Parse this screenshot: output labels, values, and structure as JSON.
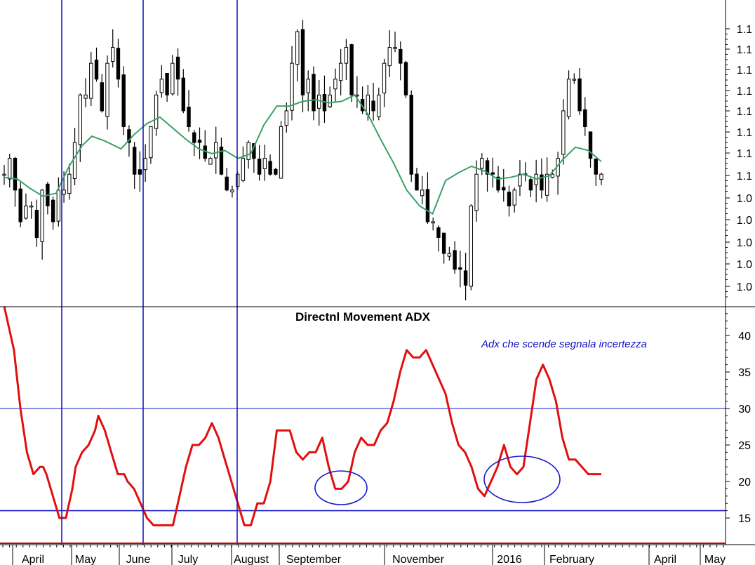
{
  "colors": {
    "candles": "#000000",
    "moving_average": "#3aa06a",
    "adx_line": "#e01010",
    "markers": "#1a1acc",
    "annotation": "#1010c0"
  },
  "chart_data": [
    {
      "type": "candlestick",
      "title": "",
      "ylabel": "",
      "y_tick_labels": [
        "1.1",
        "1.1",
        "1.1",
        "1.1",
        "1.1",
        "1.1",
        "1.1",
        "1.1",
        "1.0",
        "1.0",
        "1.0",
        "1.0",
        "1.0"
      ],
      "ylim": [
        1.0,
        1.13
      ],
      "moving_average": {
        "x": [
          0,
          4,
          8,
          12,
          16,
          20,
          24,
          27,
          31,
          36,
          40,
          44,
          48,
          52,
          56,
          60,
          64,
          68,
          72,
          76,
          80,
          84,
          88,
          92,
          96,
          100,
          104,
          108,
          112,
          116,
          120,
          124,
          128,
          132,
          136,
          140,
          144,
          148,
          152,
          156,
          160,
          164,
          168,
          172,
          176,
          180,
          184
        ],
        "y": [
          1.048,
          1.047,
          1.041,
          1.036,
          1.038,
          1.055,
          1.068,
          1.074,
          1.071,
          1.066,
          1.075,
          1.082,
          1.086,
          1.079,
          1.072,
          1.066,
          1.063,
          1.065,
          1.06,
          1.063,
          1.081,
          1.093,
          1.093,
          1.096,
          1.097,
          1.095,
          1.096,
          1.1,
          1.088,
          1.072,
          1.057,
          1.04,
          1.03,
          1.025,
          1.046,
          1.051,
          1.055,
          1.052,
          1.047,
          1.048,
          1.05,
          1.047,
          1.049,
          1.059,
          1.067,
          1.065,
          1.058
        ]
      },
      "closes": [
        1.05,
        1.06,
        1.04,
        1.02,
        1.03,
        1.03,
        1.01,
        1.04,
        1.03,
        1.02,
        1.04,
        1.04,
        1.05,
        1.07,
        1.1,
        1.1,
        1.12,
        1.11,
        1.09,
        1.12,
        1.13,
        1.11,
        1.08,
        1.07,
        1.05,
        1.05,
        1.06,
        1.08,
        1.1,
        1.11,
        1.1,
        1.12,
        1.11,
        1.09,
        1.08,
        1.07,
        1.07,
        1.06,
        1.06,
        1.07,
        1.05,
        1.04,
        1.04,
        1.05,
        1.06,
        1.07,
        1.06,
        1.05,
        1.06,
        1.05,
        1.05,
        1.08,
        1.09,
        1.12,
        1.14,
        1.1,
        1.11,
        1.09,
        1.1,
        1.09,
        1.1,
        1.11,
        1.12,
        1.13,
        1.1,
        1.1,
        1.09,
        1.1,
        1.09,
        1.1,
        1.12,
        1.13,
        1.13,
        1.12,
        1.1,
        1.05,
        1.04,
        1.04,
        1.02,
        1.02,
        1.01,
        1.0,
        1.0,
        0.99,
        0.99,
        0.98,
        1.03,
        1.05,
        1.06,
        1.05,
        1.05,
        1.04,
        1.04,
        1.03,
        1.04,
        1.05,
        1.05,
        1.04,
        1.05,
        1.04,
        1.05,
        1.05,
        1.06,
        1.09,
        1.11,
        1.11,
        1.09,
        1.08,
        1.06,
        1.05,
        1.05
      ],
      "x_tick_labels": [
        "April",
        "May",
        "June",
        "July",
        "August",
        "September",
        "November",
        "2016",
        "February",
        "April",
        "May"
      ]
    },
    {
      "type": "line",
      "title": "Directnl Movement ADX",
      "y_tick_labels": [
        "40",
        "35",
        "30",
        "25",
        "20",
        "15"
      ],
      "ylim": [
        11,
        44
      ],
      "series": [
        {
          "x": [
            0,
            3,
            5,
            7,
            9,
            11,
            12,
            13,
            15,
            17,
            19,
            21,
            22,
            24,
            26,
            28,
            29,
            31,
            33,
            35,
            37,
            38,
            40,
            42,
            44,
            46,
            47,
            49,
            52,
            54,
            56,
            58,
            60,
            62,
            64,
            66,
            68,
            70,
            72,
            74,
            76,
            78,
            80,
            82,
            84,
            86,
            88,
            90,
            92,
            94,
            96,
            98,
            100,
            102,
            104,
            106,
            108,
            110,
            112,
            114,
            116,
            118,
            120,
            122,
            124,
            126,
            128,
            130,
            132,
            134,
            136,
            138,
            140,
            142,
            144,
            146,
            148,
            150,
            152,
            154,
            156,
            158,
            160,
            162,
            164,
            166,
            168,
            170,
            172,
            174,
            176,
            178,
            180,
            182,
            184
          ],
          "y": [
            44,
            38,
            30,
            24,
            21,
            22,
            22,
            21,
            18,
            15,
            15,
            19,
            22,
            24,
            25,
            27,
            29,
            27,
            24,
            21,
            21,
            20,
            19,
            17,
            15,
            14,
            14,
            14,
            14,
            18,
            22,
            25,
            25,
            26,
            28,
            26,
            23,
            20,
            17,
            14,
            14,
            17,
            17,
            20,
            27,
            27,
            27,
            24,
            23,
            24,
            24,
            26,
            22,
            19,
            19,
            20,
            24,
            26,
            25,
            25,
            27,
            28,
            31,
            35,
            38,
            37,
            37,
            38,
            36,
            34,
            32,
            28,
            25,
            24,
            22,
            19,
            18,
            20,
            22,
            25,
            22,
            21,
            22,
            28,
            34,
            36,
            34,
            31,
            26,
            23,
            23,
            22,
            21,
            21,
            21
          ]
        }
      ],
      "reference_lines": [
        30,
        16
      ],
      "annotation": "Adx che scende segnala incertezza"
    }
  ]
}
